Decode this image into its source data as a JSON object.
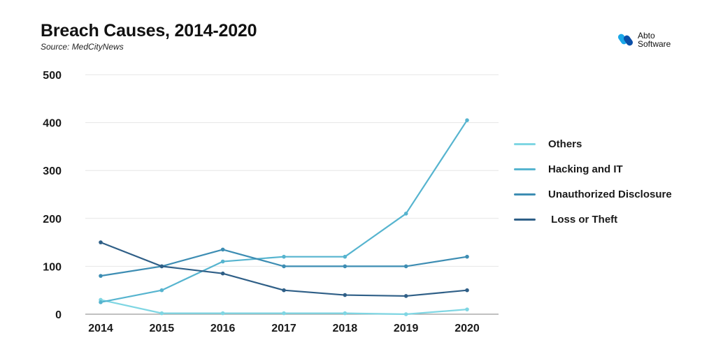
{
  "header": {
    "title": "Breach Causes, 2014-2020",
    "subtitle": "Source: MedCityNews"
  },
  "brand": {
    "name_line1": "Abto",
    "name_line2": "Software",
    "icon": "abto-logo-icon"
  },
  "chart_data": {
    "type": "line",
    "title": "Breach Causes, 2014-2020",
    "xlabel": "",
    "ylabel": "",
    "categories": [
      "2014",
      "2015",
      "2016",
      "2017",
      "2018",
      "2019",
      "2020"
    ],
    "yticks": [
      "0",
      "100",
      "200",
      "300",
      "400",
      "500"
    ],
    "ylim": [
      0,
      500
    ],
    "grid": true,
    "legend_position": "right",
    "series": [
      {
        "name": "Others",
        "color": "#7fd6e3",
        "values": [
          30,
          2,
          2,
          2,
          2,
          0,
          10
        ]
      },
      {
        "name": "Hacking and IT",
        "color": "#56b4cf",
        "values": [
          25,
          50,
          110,
          120,
          120,
          210,
          405
        ]
      },
      {
        "name": "Unauthorized Disclosure",
        "color": "#3d8db3",
        "values": [
          80,
          100,
          135,
          100,
          100,
          100,
          120
        ]
      },
      {
        "name": " Loss or Theft",
        "color": "#2f5f87",
        "values": [
          150,
          100,
          85,
          50,
          40,
          38,
          50
        ]
      }
    ]
  }
}
